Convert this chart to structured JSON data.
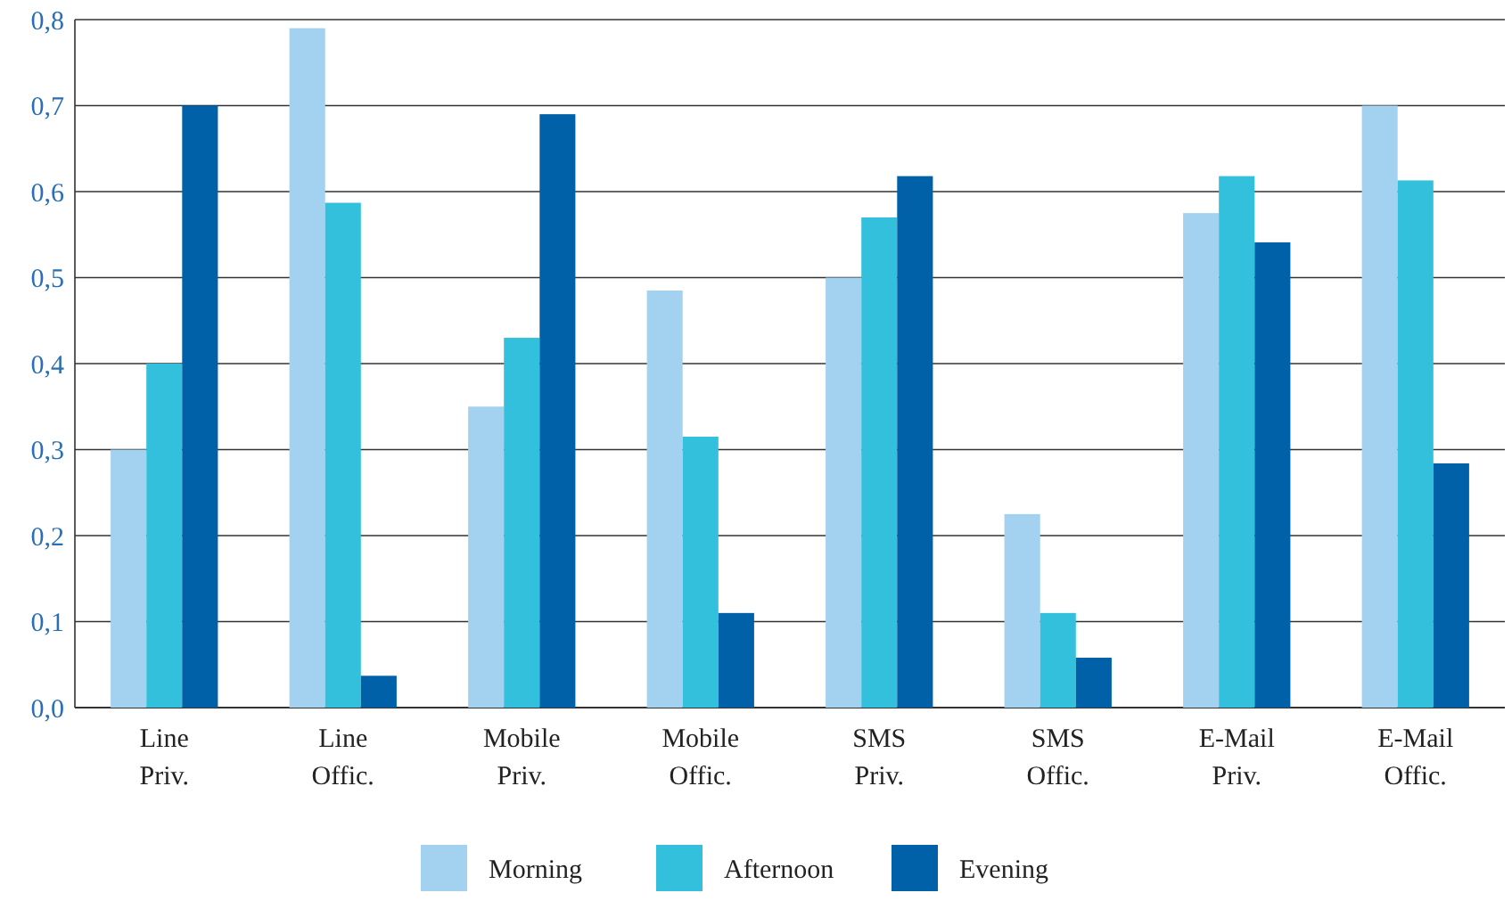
{
  "chart_data": {
    "type": "bar",
    "categories": [
      "Line Priv.",
      "Line Offic.",
      "Mobile Priv.",
      "Mobile Offic.",
      "SMS Priv.",
      "SMS Offic.",
      "E-Mail Priv.",
      "E-Mail Offic."
    ],
    "series": [
      {
        "name": "Morning",
        "color": "#a3d1f0",
        "values": [
          0.3,
          0.79,
          0.35,
          0.485,
          0.5,
          0.225,
          0.575,
          0.7
        ]
      },
      {
        "name": "Afternoon",
        "color": "#33c0dd",
        "values": [
          0.4,
          0.587,
          0.43,
          0.315,
          0.57,
          0.11,
          0.618,
          0.613
        ]
      },
      {
        "name": "Evening",
        "color": "#0060a8",
        "values": [
          0.7,
          0.037,
          0.69,
          0.11,
          0.618,
          0.058,
          0.541,
          0.284
        ]
      }
    ],
    "ylim": [
      0,
      0.8
    ],
    "yticks": [
      {
        "value": 0,
        "label": "0,0"
      },
      {
        "value": 0.1,
        "label": "0,1"
      },
      {
        "value": 0.2,
        "label": "0,2"
      },
      {
        "value": 0.3,
        "label": "0,3"
      },
      {
        "value": 0.4,
        "label": "0,4"
      },
      {
        "value": 0.5,
        "label": "0,5"
      },
      {
        "value": 0.6,
        "label": "0,6"
      },
      {
        "value": 0.7,
        "label": "0,7"
      },
      {
        "value": 0.8,
        "label": "0,8"
      }
    ],
    "grid": "y",
    "legend": "bottom"
  }
}
